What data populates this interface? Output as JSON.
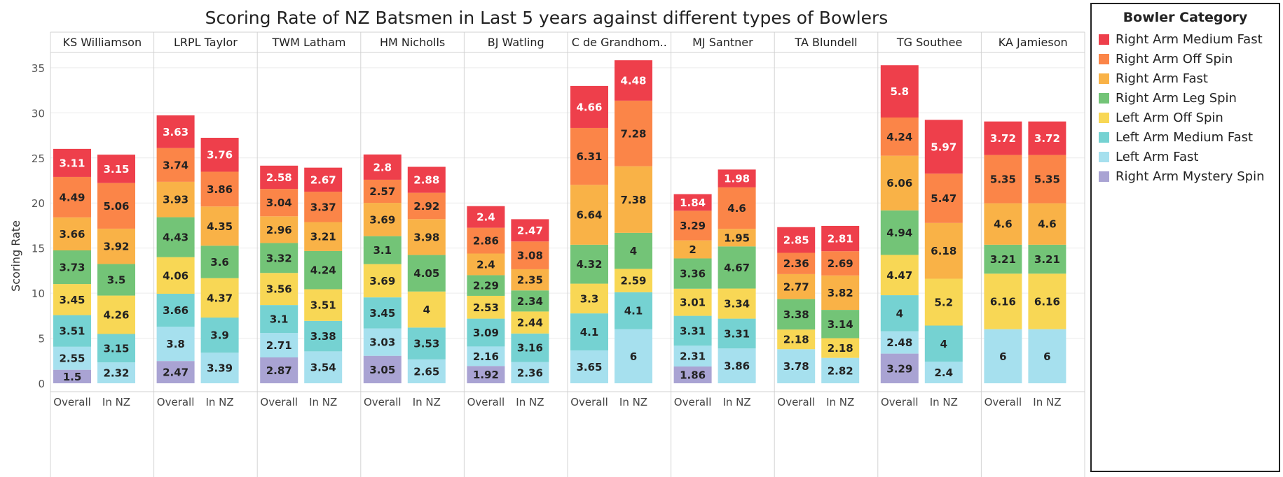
{
  "chart_data": {
    "type": "bar",
    "stacked": true,
    "title": "Scoring Rate of NZ Batsmen in Last 5 years against different types of Bowlers",
    "ylabel": "Scoring Rate",
    "ylim": [
      0,
      38
    ],
    "yticks": [
      0,
      5,
      10,
      15,
      20,
      25,
      30,
      35
    ],
    "grid": true,
    "legend_title": "Bowler Category",
    "legend_position": "right",
    "panels": [
      "KS Williamson",
      "LRPL Taylor",
      "TWM Latham",
      "HM Nicholls",
      "BJ Watling",
      "C de Grandhom..",
      "MJ Santner",
      "TA Blundell",
      "TG Southee",
      "KA Jamieson"
    ],
    "categories": [
      "Overall",
      "In NZ"
    ],
    "series": [
      {
        "name": "Right Arm Mystery Spin",
        "color": "#a9a3d3",
        "values": [
          [
            1.5,
            null
          ],
          [
            2.47,
            null
          ],
          [
            2.87,
            null
          ],
          [
            3.05,
            null
          ],
          [
            1.92,
            null
          ],
          [
            null,
            null
          ],
          [
            1.86,
            null
          ],
          [
            null,
            null
          ],
          [
            3.29,
            null
          ],
          [
            null,
            null
          ]
        ]
      },
      {
        "name": "Left Arm Fast",
        "color": "#a6e0ee",
        "values": [
          [
            2.55,
            2.32
          ],
          [
            3.8,
            3.39
          ],
          [
            2.71,
            3.54
          ],
          [
            3.03,
            2.65
          ],
          [
            2.16,
            2.36
          ],
          [
            3.65,
            6
          ],
          [
            2.31,
            3.86
          ],
          [
            3.78,
            2.82
          ],
          [
            2.48,
            2.4
          ],
          [
            6,
            6
          ]
        ]
      },
      {
        "name": "Left Arm Medium Fast",
        "color": "#75d2d2",
        "values": [
          [
            3.51,
            3.15
          ],
          [
            3.66,
            3.9
          ],
          [
            3.1,
            3.38
          ],
          [
            3.45,
            3.53
          ],
          [
            3.09,
            3.16
          ],
          [
            4.1,
            4.1
          ],
          [
            3.31,
            3.31
          ],
          [
            null,
            null
          ],
          [
            4,
            4
          ],
          [
            null,
            null
          ]
        ]
      },
      {
        "name": "Left Arm Off Spin",
        "color": "#f8d755",
        "values": [
          [
            3.45,
            4.26
          ],
          [
            4.06,
            4.37
          ],
          [
            3.56,
            3.51
          ],
          [
            3.69,
            4
          ],
          [
            2.53,
            2.44
          ],
          [
            3.3,
            2.59
          ],
          [
            3.01,
            3.34
          ],
          [
            2.18,
            2.18
          ],
          [
            4.47,
            5.2
          ],
          [
            6.16,
            6.16
          ]
        ]
      },
      {
        "name": "Right Arm Leg Spin",
        "color": "#73c477",
        "values": [
          [
            3.73,
            3.5
          ],
          [
            4.43,
            3.6
          ],
          [
            3.32,
            4.24
          ],
          [
            3.1,
            4.05
          ],
          [
            2.29,
            2.34
          ],
          [
            4.32,
            4
          ],
          [
            3.36,
            4.67
          ],
          [
            3.38,
            3.14
          ],
          [
            4.94,
            null
          ],
          [
            3.21,
            3.21
          ]
        ]
      },
      {
        "name": "Right Arm Fast",
        "color": "#f9b247",
        "values": [
          [
            3.66,
            3.92
          ],
          [
            3.93,
            4.35
          ],
          [
            2.96,
            3.21
          ],
          [
            3.69,
            3.98
          ],
          [
            2.4,
            2.35
          ],
          [
            6.64,
            7.38
          ],
          [
            2,
            1.95
          ],
          [
            2.77,
            3.82
          ],
          [
            6.06,
            6.18
          ],
          [
            4.6,
            4.6
          ]
        ]
      },
      {
        "name": "Right Arm Off Spin",
        "color": "#fb8548",
        "values": [
          [
            4.49,
            5.06
          ],
          [
            3.74,
            3.86
          ],
          [
            3.04,
            3.37
          ],
          [
            2.57,
            2.92
          ],
          [
            2.86,
            3.08
          ],
          [
            6.31,
            7.28
          ],
          [
            3.29,
            4.6
          ],
          [
            2.36,
            2.69
          ],
          [
            4.24,
            5.47
          ],
          [
            5.35,
            5.35
          ]
        ]
      },
      {
        "name": "Right Arm Medium Fast",
        "color": "#ee3f4b",
        "values": [
          [
            3.11,
            3.15
          ],
          [
            3.63,
            3.76
          ],
          [
            2.58,
            2.67
          ],
          [
            2.8,
            2.88
          ],
          [
            2.4,
            2.47
          ],
          [
            4.66,
            4.48
          ],
          [
            1.84,
            1.98
          ],
          [
            2.85,
            2.81
          ],
          [
            5.8,
            5.97
          ],
          [
            3.72,
            3.72
          ]
        ]
      }
    ]
  },
  "legend": {
    "title": "Bowler Category",
    "items": [
      {
        "label": "Right Arm Medium Fast",
        "color": "#ee3f4b"
      },
      {
        "label": "Right Arm Off Spin",
        "color": "#fb8548"
      },
      {
        "label": "Right Arm Fast",
        "color": "#f9b247"
      },
      {
        "label": "Right Arm Leg Spin",
        "color": "#73c477"
      },
      {
        "label": "Left Arm Off Spin",
        "color": "#f8d755"
      },
      {
        "label": "Left Arm Medium Fast",
        "color": "#75d2d2"
      },
      {
        "label": "Left Arm Fast",
        "color": "#a6e0ee"
      },
      {
        "label": "Right Arm Mystery Spin",
        "color": "#a9a3d3"
      }
    ]
  }
}
